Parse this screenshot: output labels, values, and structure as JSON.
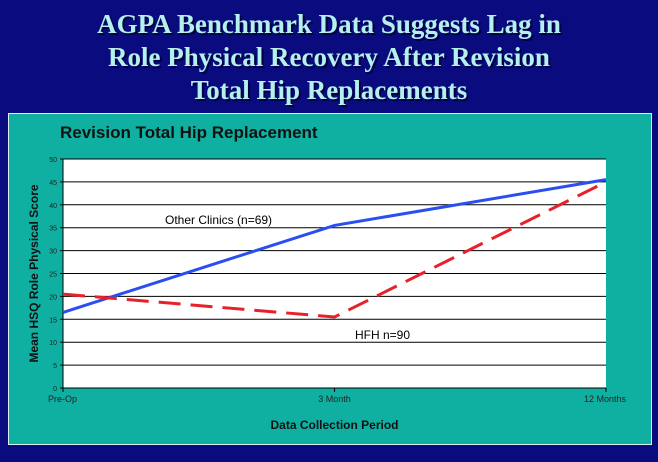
{
  "slide": {
    "title_lines": [
      "AGPA Benchmark Data Suggests Lag in",
      "Role Physical Recovery After Revision",
      "Total Hip Replacements"
    ]
  },
  "colors": {
    "background": "#0b0b80",
    "panel": "#0fb0a2",
    "title": "#b4f0ee",
    "other_clinics": "#2a4ff0",
    "hfh": "#e8202a"
  },
  "chart_data": {
    "type": "line",
    "title": "Revision Total Hip Replacement",
    "xlabel": "Data Collection Period",
    "ylabel": "Mean HSQ Role Physical Score",
    "categories": [
      "Pre-Op",
      "3 Month",
      "12 Months"
    ],
    "ylim": [
      0,
      50
    ],
    "yticks": [
      0,
      5,
      10,
      15,
      20,
      25,
      30,
      35,
      40,
      45,
      50
    ],
    "grid": true,
    "series": [
      {
        "name": "Other Clinics (n=69)",
        "values": [
          16.5,
          35.5,
          45.5
        ],
        "color": "#2a4ff0",
        "style": "solid"
      },
      {
        "name": "HFH n=90",
        "values": [
          20.5,
          15.5,
          45
        ],
        "color": "#e8202a",
        "style": "dashed"
      }
    ]
  }
}
